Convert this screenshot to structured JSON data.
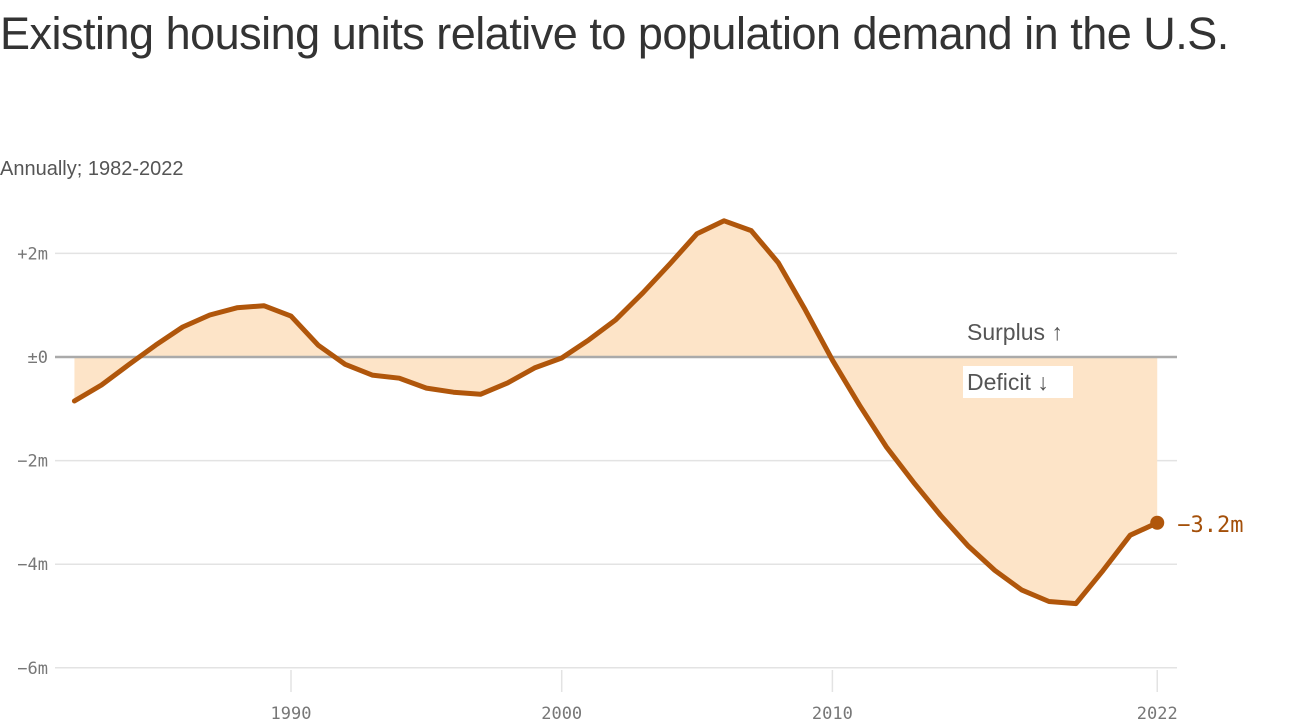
{
  "chart_data": {
    "type": "area",
    "title": "Existing housing units relative to population demand in the U.S.",
    "subtitle": "Annually; 1982-2022",
    "xlabel": "",
    "ylabel": "",
    "x": [
      1982,
      1983,
      1984,
      1985,
      1986,
      1987,
      1988,
      1989,
      1990,
      1991,
      1992,
      1993,
      1994,
      1995,
      1996,
      1997,
      1998,
      1999,
      2000,
      2001,
      2002,
      2003,
      2004,
      2005,
      2006,
      2007,
      2008,
      2009,
      2010,
      2011,
      2012,
      2013,
      2014,
      2015,
      2016,
      2017,
      2018,
      2019,
      2020,
      2021,
      2022
    ],
    "values": [
      -0.85,
      -0.54,
      -0.15,
      0.23,
      0.58,
      0.81,
      0.95,
      0.99,
      0.79,
      0.23,
      -0.14,
      -0.35,
      -0.41,
      -0.6,
      -0.68,
      -0.72,
      -0.5,
      -0.21,
      -0.02,
      0.33,
      0.72,
      1.24,
      1.8,
      2.38,
      2.63,
      2.44,
      1.82,
      0.91,
      -0.06,
      -0.93,
      -1.74,
      -2.42,
      -3.06,
      -3.64,
      -4.12,
      -4.5,
      -4.72,
      -4.76,
      -4.12,
      -3.44,
      -3.2
    ],
    "unit": "million units",
    "xlim": [
      1982,
      2022
    ],
    "ylim": [
      -6,
      2.8
    ],
    "x_ticks": [
      1990,
      2000,
      2010,
      2022
    ],
    "x_tick_labels": [
      "1990",
      "2000",
      "2010",
      "2022"
    ],
    "y_ticks": [
      2,
      0,
      -2,
      -4,
      -6
    ],
    "y_tick_labels": [
      "+2m",
      "±0",
      "−2m",
      "−4m",
      "−6m"
    ],
    "grid": true,
    "legend": "none",
    "annotations": {
      "surplus": "Surplus ↑",
      "deficit": "Deficit ↓",
      "end_label": "−3.2m"
    },
    "colors": {
      "line": "#b0560b",
      "fill": "#fde4c8",
      "zero_line": "#aaaaaa",
      "grid": "#e3e3e3"
    }
  }
}
